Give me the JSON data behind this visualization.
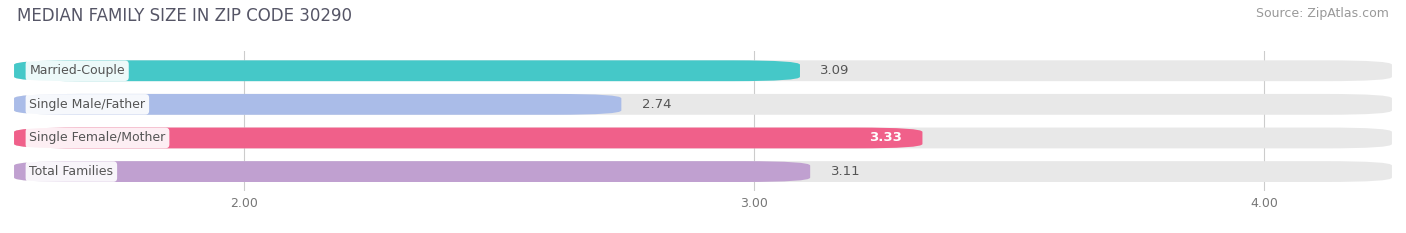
{
  "title": "MEDIAN FAMILY SIZE IN ZIP CODE 30290",
  "source": "Source: ZipAtlas.com",
  "categories": [
    "Married-Couple",
    "Single Male/Father",
    "Single Female/Mother",
    "Total Families"
  ],
  "values": [
    3.09,
    2.74,
    3.33,
    3.11
  ],
  "bar_colors": [
    "#45C8C8",
    "#AABCE8",
    "#F0608A",
    "#C0A0D0"
  ],
  "value_label_inside": [
    false,
    false,
    true,
    false
  ],
  "xlim": [
    1.55,
    4.25
  ],
  "xstart": 1.55,
  "xticks": [
    2.0,
    3.0,
    4.0
  ],
  "xtick_labels": [
    "2.00",
    "3.00",
    "4.00"
  ],
  "bar_height": 0.62,
  "background_color": "#ffffff",
  "bar_bg_color": "#e8e8e8",
  "title_fontsize": 12,
  "source_fontsize": 9,
  "label_fontsize": 9,
  "value_fontsize": 9.5,
  "title_color": "#555566",
  "source_color": "#999999",
  "value_color_outside": "#555555",
  "value_color_inside": "#ffffff",
  "label_text_color": "#555555"
}
